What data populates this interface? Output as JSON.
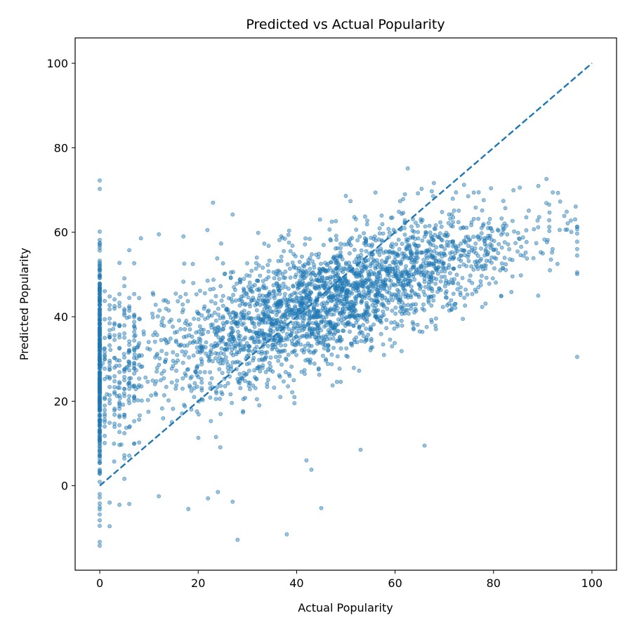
{
  "chart_data": {
    "type": "scatter",
    "title": "Predicted vs Actual Popularity",
    "xlabel": "Actual Popularity",
    "ylabel": "Predicted Popularity",
    "xlim": [
      -5,
      105
    ],
    "ylim": [
      -20,
      106
    ],
    "x_ticks": [
      0,
      20,
      40,
      60,
      80,
      100
    ],
    "y_ticks": [
      0,
      20,
      40,
      60,
      80,
      100
    ],
    "grid": false,
    "series": [
      {
        "kind": "scatter",
        "color": "#1f77b4",
        "opacity": 0.45,
        "note_points": "dense cloud; representative outliers listed",
        "points": [
          [
            0,
            -14.2
          ],
          [
            0,
            -13.3
          ],
          [
            0,
            -9.5
          ],
          [
            0,
            -8.2
          ],
          [
            0,
            -6.8
          ],
          [
            0,
            -5.0
          ],
          [
            0,
            -4.2
          ],
          [
            0,
            -2.8
          ],
          [
            2,
            -9.6
          ],
          [
            2,
            -4.0
          ],
          [
            4,
            -4.5
          ],
          [
            6,
            -4.3
          ],
          [
            12,
            -2.5
          ],
          [
            18,
            -5.5
          ],
          [
            22,
            -3.0
          ],
          [
            24,
            -1.5
          ],
          [
            27,
            -3.8
          ],
          [
            28,
            -12.8
          ],
          [
            38,
            -11.5
          ],
          [
            43,
            3.8
          ],
          [
            45,
            -5.3
          ],
          [
            42,
            6.0
          ],
          [
            53,
            8.5
          ],
          [
            66,
            9.5
          ],
          [
            97,
            30.5
          ],
          [
            97,
            50.5
          ],
          [
            97,
            54.5
          ],
          [
            93,
            52.5
          ],
          [
            92,
            56.0
          ],
          [
            90,
            55.0
          ],
          [
            23,
            67.0
          ],
          [
            27,
            64.2
          ],
          [
            50,
            68.6
          ],
          [
            56,
            69.4
          ],
          [
            62,
            69.0
          ],
          [
            76,
            69.4
          ],
          [
            78,
            67.6
          ],
          [
            82,
            67.4
          ],
          [
            12,
            59.5
          ],
          [
            17,
            59.0
          ],
          [
            0,
            58.2
          ],
          [
            0,
            57.5
          ]
        ]
      },
      {
        "kind": "line",
        "style": "dashed",
        "color": "#1f77b4",
        "points": [
          [
            0,
            0
          ],
          [
            100,
            100
          ]
        ]
      }
    ]
  }
}
